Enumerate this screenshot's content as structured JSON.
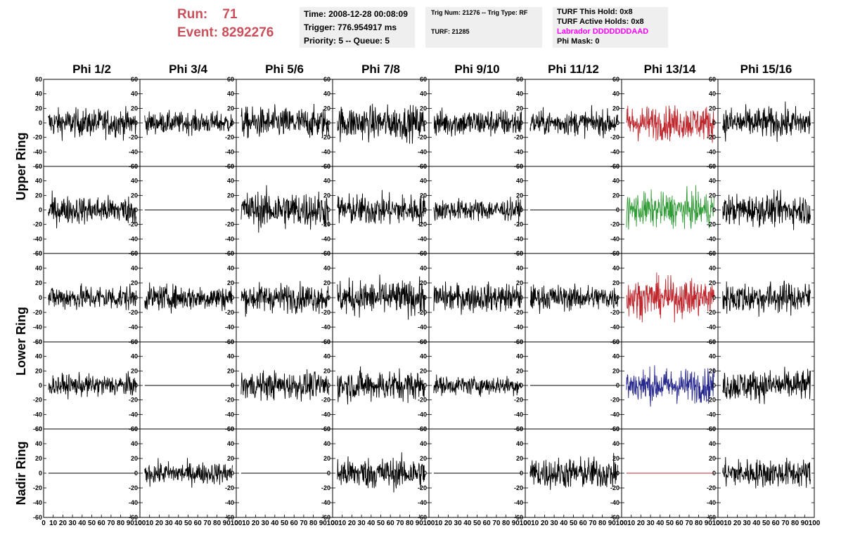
{
  "header": {
    "run_label": "Run:",
    "run_value": "71",
    "event_label": "Event:",
    "event_value": "8292276",
    "time": "Time: 2008-12-28 00:08:09",
    "trigger": "Trigger: 776.954917 ms",
    "priority": "Priority: 5 -- Queue: 5",
    "trig_num": "Trig Num: 21276 -- Trig Type: RF",
    "turf": "TURF: 21285",
    "turf_this_hold": "TURF This Hold: 0x8",
    "turf_active_holds": "TURF Active Holds: 0x8",
    "labrador": "Labrador DDDDDDDAAD",
    "phi_mask": "Phi Mask: 0"
  },
  "colors": {
    "run_text": "#c9505a",
    "labrador_text": "#ff00ff",
    "trace_default": "#000000",
    "trace_red": "#c0272d",
    "trace_green": "#2e9a33",
    "trace_blue": "#27288e",
    "info_background": "#efefef"
  },
  "chart_data": {
    "type": "line",
    "columns": [
      "Phi 1/2",
      "Phi 3/4",
      "Phi 5/6",
      "Phi 7/8",
      "Phi 9/10",
      "Phi 11/12",
      "Phi 13/14",
      "Phi 15/16"
    ],
    "row_groups": [
      {
        "label": "Upper Ring",
        "rows": [
          0,
          1
        ]
      },
      {
        "label": "Lower Ring",
        "rows": [
          2,
          3
        ]
      },
      {
        "label": "Nadir Ring",
        "rows": [
          4
        ]
      }
    ],
    "xlim": [
      0,
      100
    ],
    "ylim": [
      -60,
      60
    ],
    "x_ticks": [
      0,
      10,
      20,
      30,
      40,
      50,
      60,
      70,
      80,
      90,
      100
    ],
    "x_tick_labels": [
      "0",
      "10",
      "20",
      "30",
      "40",
      "50",
      "60",
      "70",
      "80",
      "90",
      "100"
    ],
    "y_ticks": [
      60,
      40,
      20,
      0,
      -20,
      -40,
      -60
    ],
    "y_tick_labels": [
      "60",
      "40",
      "20",
      "0",
      "-20",
      "-40",
      "-60"
    ],
    "panels": [
      [
        {
          "a": 18,
          "c": "black"
        },
        {
          "a": 14,
          "c": "black"
        },
        {
          "a": 20,
          "c": "black"
        },
        {
          "a": 22,
          "c": "black"
        },
        {
          "a": 18,
          "c": "black"
        },
        {
          "a": 16,
          "c": "black"
        },
        {
          "a": 22,
          "c": "red"
        },
        {
          "a": 20,
          "c": "black"
        }
      ],
      [
        {
          "a": 18,
          "c": "black"
        },
        {
          "a": 0,
          "c": "black"
        },
        {
          "a": 24,
          "c": "black"
        },
        {
          "a": 20,
          "c": "black"
        },
        {
          "a": 14,
          "c": "black"
        },
        {
          "a": 0,
          "c": "black"
        },
        {
          "a": 22,
          "c": "green"
        },
        {
          "a": 20,
          "c": "black"
        }
      ],
      [
        {
          "a": 16,
          "c": "black"
        },
        {
          "a": 16,
          "c": "black"
        },
        {
          "a": 18,
          "c": "black"
        },
        {
          "a": 22,
          "c": "black"
        },
        {
          "a": 18,
          "c": "black"
        },
        {
          "a": 16,
          "c": "black"
        },
        {
          "a": 24,
          "c": "red"
        },
        {
          "a": 20,
          "c": "black"
        }
      ],
      [
        {
          "a": 14,
          "c": "black"
        },
        {
          "a": 0,
          "c": "black"
        },
        {
          "a": 18,
          "c": "black"
        },
        {
          "a": 20,
          "c": "black"
        },
        {
          "a": 12,
          "c": "black"
        },
        {
          "a": 0,
          "c": "black"
        },
        {
          "a": 22,
          "c": "blue"
        },
        {
          "a": 20,
          "c": "black"
        }
      ],
      [
        {
          "a": 0,
          "c": "black"
        },
        {
          "a": 14,
          "c": "black"
        },
        {
          "a": 0,
          "c": "black"
        },
        {
          "a": 20,
          "c": "black"
        },
        {
          "a": 0,
          "c": "black"
        },
        {
          "a": 20,
          "c": "black"
        },
        {
          "a": 0,
          "c": "red"
        },
        {
          "a": 18,
          "c": "black"
        }
      ]
    ]
  }
}
